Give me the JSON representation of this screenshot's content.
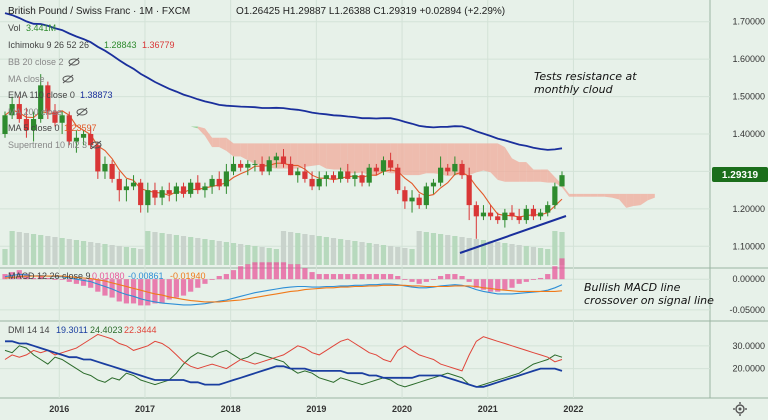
{
  "header": {
    "symbol_title": "British Pound / Swiss Franc · 1M · FXCM",
    "ohlc": "O1.26425 H1.29887 L1.26388 C1.29319 +0.02894 (+2.29%)",
    "vol_label": "Vol",
    "vol_value": "3.441M"
  },
  "indicators": {
    "ichimoku_label": "Ichimoku 9 26 52 26",
    "ichimoku_v1": "1.28843",
    "ichimoku_v2": "1.36779",
    "bb_label": "BB 20 close 2",
    "ma_label": "MA close",
    "ema_label": "EMA 110 close 0",
    "ema_value": "1.38873",
    "ma200_label": "MA 200 close",
    "ma5_label": "MA 5 close 0",
    "ma5_value": "1.23597",
    "supertrend_label": "Supertrend 10 hl2 3"
  },
  "macd": {
    "label": "MACD 12 26 close 9",
    "v1": "0.01080",
    "v2": "-0.00861",
    "v3": "-0.01940"
  },
  "dmi": {
    "label": "DMI 14 14",
    "v1": "19.3011",
    "v2": "24.4023",
    "v3": "22.3444"
  },
  "annotations": {
    "cloud_line1": "Tests resistance at",
    "cloud_line2": "monthly cloud",
    "macd_line1": "Bullish MACD line",
    "macd_line2": "crossover on signal line"
  },
  "price_tag": "1.29319",
  "colors": {
    "background": "#e7f1e9",
    "bull": "#2e8b2e",
    "bear": "#d93636",
    "kumo_bull": "#7fc77f",
    "kumo_bear": "#f0a99a",
    "ema": "#1a2f9c",
    "ma5": "#e25a2a",
    "macd_line": "#2e8fd6",
    "signal_line": "#f07a1a",
    "hist": "#e8559a",
    "dmi_plus": "#2b6b2b",
    "dmi_minus": "#e0453a",
    "adx": "#1a3ea0",
    "trendline": "#1a2f9c",
    "price_tag": "#1b6e1b"
  },
  "chart_data": [
    {
      "type": "candlestick",
      "title": "British Pound / Swiss Franc · 1M · FXCM",
      "ylim": [
        1.05,
        1.75
      ],
      "y_ticks": [
        "1.70000",
        "1.60000",
        "1.50000",
        "1.40000",
        "1.30000",
        "1.20000",
        "1.10000"
      ],
      "x_ticks": [
        "2016",
        "2017",
        "2018",
        "2019",
        "2020",
        "2021",
        "2022"
      ],
      "last_close": 1.29319,
      "candles": [
        [
          1.4,
          1.46,
          1.39,
          1.45
        ],
        [
          1.45,
          1.5,
          1.44,
          1.48
        ],
        [
          1.48,
          1.5,
          1.43,
          1.44
        ],
        [
          1.44,
          1.47,
          1.39,
          1.41
        ],
        [
          1.41,
          1.46,
          1.38,
          1.44
        ],
        [
          1.44,
          1.56,
          1.43,
          1.53
        ],
        [
          1.53,
          1.54,
          1.44,
          1.46
        ],
        [
          1.46,
          1.48,
          1.42,
          1.43
        ],
        [
          1.43,
          1.46,
          1.4,
          1.45
        ],
        [
          1.45,
          1.46,
          1.37,
          1.38
        ],
        [
          1.38,
          1.41,
          1.35,
          1.39
        ],
        [
          1.39,
          1.41,
          1.37,
          1.4
        ],
        [
          1.4,
          1.42,
          1.36,
          1.37
        ],
        [
          1.37,
          1.38,
          1.28,
          1.3
        ],
        [
          1.3,
          1.34,
          1.28,
          1.32
        ],
        [
          1.32,
          1.33,
          1.27,
          1.28
        ],
        [
          1.28,
          1.3,
          1.22,
          1.25
        ],
        [
          1.25,
          1.28,
          1.22,
          1.26
        ],
        [
          1.26,
          1.29,
          1.25,
          1.27
        ],
        [
          1.27,
          1.28,
          1.19,
          1.21
        ],
        [
          1.21,
          1.27,
          1.19,
          1.25
        ],
        [
          1.25,
          1.27,
          1.21,
          1.23
        ],
        [
          1.23,
          1.26,
          1.21,
          1.25
        ],
        [
          1.25,
          1.27,
          1.22,
          1.24
        ],
        [
          1.24,
          1.27,
          1.22,
          1.26
        ],
        [
          1.26,
          1.27,
          1.23,
          1.24
        ],
        [
          1.24,
          1.28,
          1.23,
          1.27
        ],
        [
          1.27,
          1.29,
          1.24,
          1.25
        ],
        [
          1.25,
          1.27,
          1.23,
          1.26
        ],
        [
          1.26,
          1.29,
          1.24,
          1.28
        ],
        [
          1.28,
          1.3,
          1.25,
          1.26
        ],
        [
          1.26,
          1.32,
          1.24,
          1.3
        ],
        [
          1.3,
          1.34,
          1.29,
          1.32
        ],
        [
          1.32,
          1.33,
          1.3,
          1.31
        ],
        [
          1.31,
          1.33,
          1.29,
          1.32
        ],
        [
          1.32,
          1.33,
          1.3,
          1.32
        ],
        [
          1.32,
          1.34,
          1.29,
          1.3
        ],
        [
          1.3,
          1.34,
          1.29,
          1.33
        ],
        [
          1.33,
          1.35,
          1.31,
          1.34
        ],
        [
          1.34,
          1.36,
          1.31,
          1.32
        ],
        [
          1.32,
          1.34,
          1.29,
          1.29
        ],
        [
          1.29,
          1.31,
          1.27,
          1.3
        ],
        [
          1.3,
          1.32,
          1.27,
          1.28
        ],
        [
          1.28,
          1.3,
          1.25,
          1.26
        ],
        [
          1.26,
          1.3,
          1.25,
          1.28
        ],
        [
          1.28,
          1.3,
          1.26,
          1.29
        ],
        [
          1.29,
          1.3,
          1.27,
          1.28
        ],
        [
          1.28,
          1.31,
          1.27,
          1.3
        ],
        [
          1.3,
          1.32,
          1.27,
          1.28
        ],
        [
          1.28,
          1.3,
          1.26,
          1.29
        ],
        [
          1.29,
          1.3,
          1.26,
          1.27
        ],
        [
          1.27,
          1.32,
          1.26,
          1.31
        ],
        [
          1.31,
          1.32,
          1.29,
          1.3
        ],
        [
          1.3,
          1.34,
          1.29,
          1.33
        ],
        [
          1.33,
          1.35,
          1.3,
          1.31
        ],
        [
          1.31,
          1.32,
          1.24,
          1.25
        ],
        [
          1.25,
          1.26,
          1.2,
          1.22
        ],
        [
          1.22,
          1.25,
          1.19,
          1.23
        ],
        [
          1.23,
          1.24,
          1.2,
          1.21
        ],
        [
          1.21,
          1.27,
          1.2,
          1.26
        ],
        [
          1.26,
          1.28,
          1.24,
          1.27
        ],
        [
          1.27,
          1.34,
          1.26,
          1.31
        ],
        [
          1.31,
          1.32,
          1.29,
          1.3
        ],
        [
          1.3,
          1.34,
          1.29,
          1.32
        ],
        [
          1.32,
          1.33,
          1.28,
          1.29
        ],
        [
          1.29,
          1.31,
          1.17,
          1.21
        ],
        [
          1.21,
          1.22,
          1.12,
          1.18
        ],
        [
          1.18,
          1.21,
          1.17,
          1.19
        ],
        [
          1.19,
          1.21,
          1.17,
          1.18
        ],
        [
          1.18,
          1.19,
          1.16,
          1.17
        ],
        [
          1.17,
          1.2,
          1.15,
          1.19
        ],
        [
          1.19,
          1.21,
          1.17,
          1.18
        ],
        [
          1.18,
          1.2,
          1.16,
          1.17
        ],
        [
          1.17,
          1.21,
          1.16,
          1.2
        ],
        [
          1.2,
          1.21,
          1.17,
          1.18
        ],
        [
          1.18,
          1.2,
          1.17,
          1.19
        ],
        [
          1.19,
          1.22,
          1.18,
          1.21
        ],
        [
          1.21,
          1.27,
          1.2,
          1.26
        ],
        [
          1.26,
          1.3,
          1.26,
          1.29
        ]
      ]
    },
    {
      "type": "line",
      "title": "MACD 12 26 close 9",
      "ylim": [
        -0.065,
        0.015
      ],
      "y_ticks": [
        "0.00000",
        "-0.05000"
      ],
      "series": [
        {
          "name": "MACD",
          "values": [
            0.004,
            0.006,
            0.008,
            0.007,
            0.005,
            0.006,
            0.005,
            0.004,
            0.004,
            0.002,
            0.0,
            -0.002,
            -0.004,
            -0.008,
            -0.012,
            -0.016,
            -0.021,
            -0.025,
            -0.028,
            -0.032,
            -0.035,
            -0.037,
            -0.039,
            -0.04,
            -0.041,
            -0.042,
            -0.042,
            -0.041,
            -0.04,
            -0.038,
            -0.036,
            -0.034,
            -0.031,
            -0.028,
            -0.025,
            -0.022,
            -0.02,
            -0.018,
            -0.016,
            -0.014,
            -0.013,
            -0.012,
            -0.012,
            -0.013,
            -0.013,
            -0.012,
            -0.012,
            -0.011,
            -0.011,
            -0.01,
            -0.01,
            -0.009,
            -0.009,
            -0.008,
            -0.008,
            -0.009,
            -0.011,
            -0.013,
            -0.014,
            -0.014,
            -0.013,
            -0.011,
            -0.01,
            -0.009,
            -0.01,
            -0.013,
            -0.017,
            -0.02,
            -0.022,
            -0.024,
            -0.024,
            -0.024,
            -0.023,
            -0.022,
            -0.021,
            -0.02,
            -0.018,
            -0.014,
            -0.009
          ]
        },
        {
          "name": "Signal",
          "values": [
            0.002,
            0.003,
            0.004,
            0.005,
            0.005,
            0.005,
            0.005,
            0.005,
            0.005,
            0.004,
            0.003,
            0.002,
            0.001,
            -0.001,
            -0.003,
            -0.006,
            -0.009,
            -0.012,
            -0.015,
            -0.018,
            -0.021,
            -0.024,
            -0.026,
            -0.029,
            -0.031,
            -0.033,
            -0.035,
            -0.036,
            -0.037,
            -0.037,
            -0.037,
            -0.036,
            -0.035,
            -0.034,
            -0.032,
            -0.03,
            -0.028,
            -0.026,
            -0.024,
            -0.022,
            -0.02,
            -0.019,
            -0.017,
            -0.016,
            -0.015,
            -0.014,
            -0.014,
            -0.013,
            -0.013,
            -0.012,
            -0.012,
            -0.011,
            -0.011,
            -0.01,
            -0.01,
            -0.01,
            -0.01,
            -0.011,
            -0.011,
            -0.012,
            -0.012,
            -0.012,
            -0.012,
            -0.011,
            -0.011,
            -0.011,
            -0.012,
            -0.014,
            -0.015,
            -0.017,
            -0.018,
            -0.019,
            -0.02,
            -0.02,
            -0.02,
            -0.02,
            -0.02,
            -0.02,
            -0.019
          ]
        }
      ]
    },
    {
      "type": "line",
      "title": "DMI 14 14",
      "ylim": [
        8,
        40
      ],
      "y_ticks": [
        "30.0000",
        "20.0000"
      ],
      "series": [
        {
          "name": "+DI",
          "values": [
            28,
            27,
            30,
            29,
            26,
            24,
            22,
            25,
            24,
            22,
            20,
            18,
            17,
            15,
            14,
            16,
            15,
            18,
            17,
            15,
            14,
            13,
            14,
            15,
            18,
            22,
            25,
            27,
            26,
            25,
            27,
            28,
            26,
            24,
            25,
            27,
            26,
            25,
            24,
            23,
            20,
            18,
            19,
            18,
            16,
            15,
            14,
            16,
            15,
            14,
            13,
            14,
            15,
            16,
            15,
            13,
            12,
            13,
            14,
            15,
            16,
            17,
            18,
            17,
            16,
            13,
            12,
            13,
            14,
            15,
            16,
            17,
            18,
            20,
            22,
            23,
            24,
            26,
            25
          ]
        },
        {
          "name": "-DI",
          "values": [
            24,
            26,
            25,
            26,
            28,
            27,
            28,
            26,
            27,
            28,
            29,
            31,
            33,
            35,
            34,
            33,
            31,
            30,
            28,
            29,
            30,
            32,
            31,
            29,
            26,
            23,
            21,
            20,
            21,
            22,
            21,
            20,
            22,
            24,
            23,
            22,
            23,
            24,
            25,
            26,
            28,
            30,
            29,
            27,
            26,
            28,
            30,
            32,
            33,
            31,
            29,
            27,
            26,
            24,
            23,
            28,
            30,
            28,
            26,
            25,
            24,
            22,
            21,
            20,
            19,
            26,
            32,
            34,
            33,
            32,
            31,
            30,
            29,
            28,
            27,
            26,
            25,
            23,
            24
          ]
        },
        {
          "name": "ADX",
          "values": [
            32,
            32,
            31,
            31,
            30,
            29,
            28,
            27,
            26,
            25,
            25,
            24,
            24,
            23,
            22,
            21,
            20,
            19,
            18,
            17,
            16,
            15,
            15,
            15,
            15,
            15,
            14,
            14,
            13,
            13,
            13,
            14,
            15,
            16,
            17,
            18,
            19,
            20,
            21,
            21,
            20,
            20,
            20,
            19,
            19,
            19,
            19,
            19,
            18,
            18,
            18,
            17,
            17,
            16,
            16,
            16,
            16,
            16,
            17,
            17,
            17,
            17,
            16,
            15,
            14,
            13,
            12,
            12,
            13,
            14,
            15,
            16,
            17,
            18,
            19,
            20,
            20,
            20,
            19
          ]
        }
      ]
    }
  ]
}
